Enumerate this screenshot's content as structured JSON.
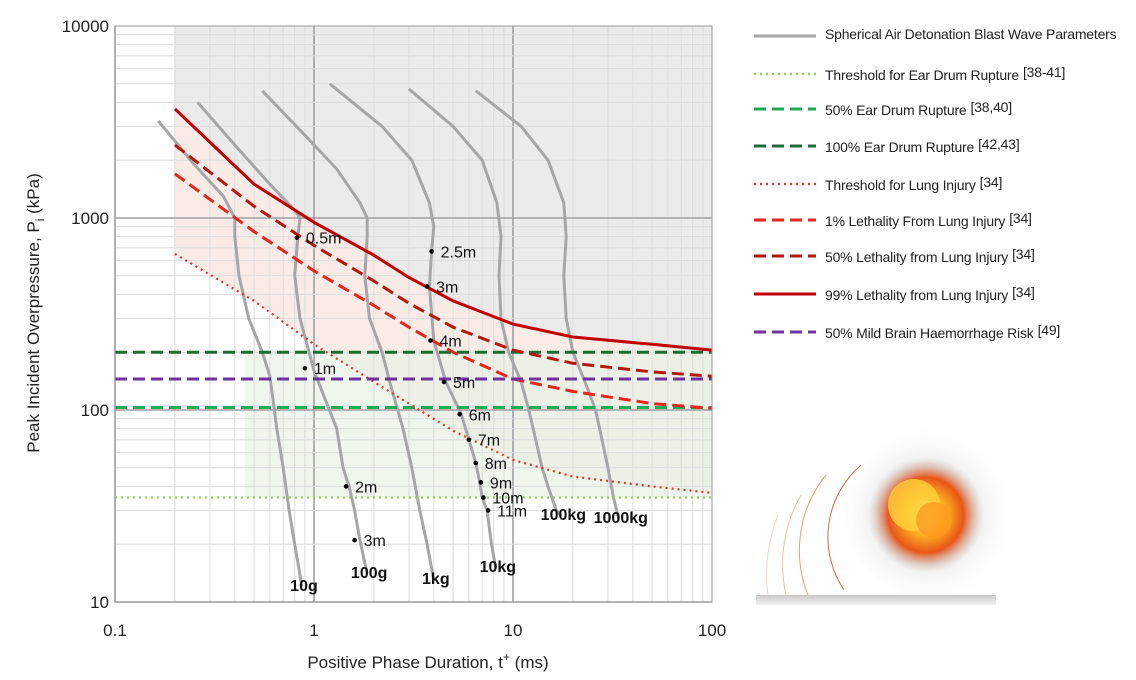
{
  "chart_data": {
    "type": "line",
    "x_scale": "log",
    "y_scale": "log",
    "xlim": [
      0.1,
      100
    ],
    "ylim": [
      10,
      10000
    ],
    "xlabel_base": "Positive Phase Duration, t",
    "xlabel_sup": "+",
    "xlabel_unit": " (ms)",
    "ylabel_base": "Peak Incident Overpressure, P",
    "ylabel_sub": "i",
    "ylabel_unit": " (kPa)",
    "x_ticks": [
      0.1,
      1,
      10,
      100
    ],
    "x_tick_labels": [
      "0.1",
      "1",
      "10",
      "100"
    ],
    "y_ticks": [
      10,
      100,
      1000,
      10000
    ],
    "y_tick_labels": [
      "10",
      "100",
      "1000",
      "10000"
    ],
    "grid": true,
    "legend_position": "right",
    "series": [
      {
        "name": "Spherical Air Detonation Blast Wave Parameters",
        "color": "#a6a6a6",
        "dash": "solid",
        "charge_curves": [
          {
            "label": "10g",
            "points": [
              [
                0.165,
                3200
              ],
              [
                0.25,
                1900
              ],
              [
                0.35,
                1300
              ],
              [
                0.4,
                1000
              ],
              [
                0.4,
                800
              ],
              [
                0.42,
                500
              ],
              [
                0.47,
                300
              ],
              [
                0.55,
                200
              ],
              [
                0.6,
                150
              ],
              [
                0.65,
                80
              ],
              [
                0.7,
                50
              ],
              [
                0.75,
                30
              ],
              [
                0.8,
                20
              ],
              [
                0.87,
                12
              ]
            ]
          },
          {
            "label": "100g",
            "points": [
              [
                0.26,
                4000
              ],
              [
                0.4,
                2400
              ],
              [
                0.6,
                1500
              ],
              [
                0.8,
                1100
              ],
              [
                0.85,
                1000
              ],
              [
                0.83,
                800
              ],
              [
                0.8,
                500
              ],
              [
                0.85,
                300
              ],
              [
                1.0,
                160
              ],
              [
                1.3,
                80
              ],
              [
                1.4,
                50
              ],
              [
                1.5,
                40
              ],
              [
                1.6,
                30
              ],
              [
                1.7,
                21
              ],
              [
                1.85,
                14
              ]
            ]
          },
          {
            "label": "1kg",
            "points": [
              [
                0.55,
                4600
              ],
              [
                0.9,
                2700
              ],
              [
                1.3,
                1800
              ],
              [
                1.7,
                1200
              ],
              [
                1.85,
                1000
              ],
              [
                1.85,
                800
              ],
              [
                1.8,
                500
              ],
              [
                1.9,
                300
              ],
              [
                2.2,
                200
              ],
              [
                2.4,
                140
              ],
              [
                2.8,
                80
              ],
              [
                3.1,
                50
              ],
              [
                3.4,
                30
              ],
              [
                3.7,
                20
              ],
              [
                4.0,
                13
              ]
            ]
          },
          {
            "label": "10kg",
            "points": [
              [
                1.2,
                5000
              ],
              [
                2.2,
                3000
              ],
              [
                3.1,
                2000
              ],
              [
                3.8,
                1200
              ],
              [
                4.0,
                900
              ],
              [
                3.9,
                670
              ],
              [
                3.8,
                440
              ],
              [
                4.0,
                230
              ],
              [
                4.6,
                140
              ],
              [
                5.5,
                95
              ],
              [
                6.0,
                70
              ],
              [
                6.5,
                53
              ],
              [
                6.8,
                42
              ],
              [
                7.0,
                35
              ],
              [
                7.4,
                30
              ],
              [
                7.8,
                20
              ],
              [
                8.2,
                15
              ]
            ]
          },
          {
            "label": "100kg",
            "points": [
              [
                3.0,
                4700
              ],
              [
                5.0,
                3000
              ],
              [
                7.0,
                2000
              ],
              [
                8.3,
                1200
              ],
              [
                8.7,
                800
              ],
              [
                8.5,
                500
              ],
              [
                8.7,
                300
              ],
              [
                9.5,
                200
              ],
              [
                11.0,
                140
              ],
              [
                12.0,
                100
              ],
              [
                13.0,
                70
              ],
              [
                14.0,
                50
              ],
              [
                15.0,
                40
              ],
              [
                16.5,
                30
              ],
              [
                17.5,
                28
              ]
            ]
          },
          {
            "label": "1000kg",
            "points": [
              [
                6.5,
                4600
              ],
              [
                11.0,
                3000
              ],
              [
                15.0,
                2000
              ],
              [
                18.0,
                1200
              ],
              [
                18.5,
                800
              ],
              [
                18.0,
                500
              ],
              [
                18.5,
                300
              ],
              [
                20.0,
                200
              ],
              [
                23.0,
                140
              ],
              [
                26.0,
                100
              ],
              [
                28.0,
                70
              ],
              [
                30.0,
                50
              ],
              [
                32.0,
                35
              ],
              [
                34.0,
                27
              ]
            ]
          }
        ]
      },
      {
        "name": "Threshold for Ear Drum Rupture",
        "ref": "[38-41]",
        "color": "#8ed14b",
        "dash": "dotted",
        "x": [
          0.1,
          100
        ],
        "y": [
          35,
          35
        ]
      },
      {
        "name": "50% Ear Drum Rupture",
        "ref": "[38,40]",
        "color": "#1faa5a",
        "dash": "dashed",
        "x": [
          0.1,
          100
        ],
        "y": [
          103,
          103
        ]
      },
      {
        "name": "100% Ear Drum Rupture",
        "ref": "[42,43]",
        "color": "#1d6b35",
        "dash": "dashed",
        "x": [
          0.1,
          100
        ],
        "y": [
          200,
          200
        ]
      },
      {
        "name": "Threshold for Lung Injury",
        "ref": "[34]",
        "color": "#e8332a",
        "dash": "dotted",
        "x": [
          0.2,
          0.5,
          1,
          2,
          3,
          5,
          10,
          20,
          50,
          100
        ],
        "y": [
          650,
          370,
          220,
          140,
          108,
          78,
          55,
          45,
          40,
          37
        ]
      },
      {
        "name": "1% Lethality From Lung Injury",
        "ref": "[34]",
        "color": "#e52620",
        "dash": "dashed",
        "x": [
          0.2,
          0.5,
          1,
          2,
          3,
          5,
          10,
          20,
          50,
          100
        ],
        "y": [
          1700,
          850,
          530,
          350,
          270,
          200,
          145,
          125,
          108,
          102
        ]
      },
      {
        "name": "50% Lethality from Lung Injury",
        "ref": "[34]",
        "color": "#b3170f",
        "dash": "dashed",
        "x": [
          0.2,
          0.5,
          1,
          2,
          3,
          5,
          10,
          20,
          50,
          100
        ],
        "y": [
          2400,
          1150,
          720,
          470,
          360,
          270,
          205,
          175,
          158,
          150
        ]
      },
      {
        "name": "99% Lethality from Lung Injury",
        "ref": "[34]",
        "color": "#c00000",
        "dash": "solid",
        "x": [
          0.2,
          0.5,
          1,
          2,
          3,
          5,
          10,
          20,
          50,
          100
        ],
        "y": [
          3700,
          1500,
          950,
          640,
          490,
          370,
          280,
          240,
          220,
          205
        ]
      },
      {
        "name": "50% Mild Brain Haemorrhage Risk",
        "ref": "[49]",
        "color": "#7030a0",
        "dash": "dashed",
        "x": [
          0.1,
          100
        ],
        "y": [
          145,
          145
        ]
      }
    ],
    "distance_markers": [
      {
        "label": "0.5m",
        "x": 0.82,
        "y": 790
      },
      {
        "label": "1m",
        "x": 0.9,
        "y": 165
      },
      {
        "label": "2m",
        "x": 1.45,
        "y": 40
      },
      {
        "label": "3m",
        "x": 1.6,
        "y": 21
      },
      {
        "label": "2.5m",
        "x": 3.9,
        "y": 670
      },
      {
        "label": "3m",
        "x": 3.7,
        "y": 440
      },
      {
        "label": "4m",
        "x": 3.85,
        "y": 230
      },
      {
        "label": "5m",
        "x": 4.5,
        "y": 140
      },
      {
        "label": "6m",
        "x": 5.4,
        "y": 95
      },
      {
        "label": "7m",
        "x": 6.0,
        "y": 70
      },
      {
        "label": "8m",
        "x": 6.5,
        "y": 53
      },
      {
        "label": "9m",
        "x": 6.9,
        "y": 42
      },
      {
        "label": "10m",
        "x": 7.1,
        "y": 35
      },
      {
        "label": "11m",
        "x": 7.5,
        "y": 30
      }
    ]
  }
}
